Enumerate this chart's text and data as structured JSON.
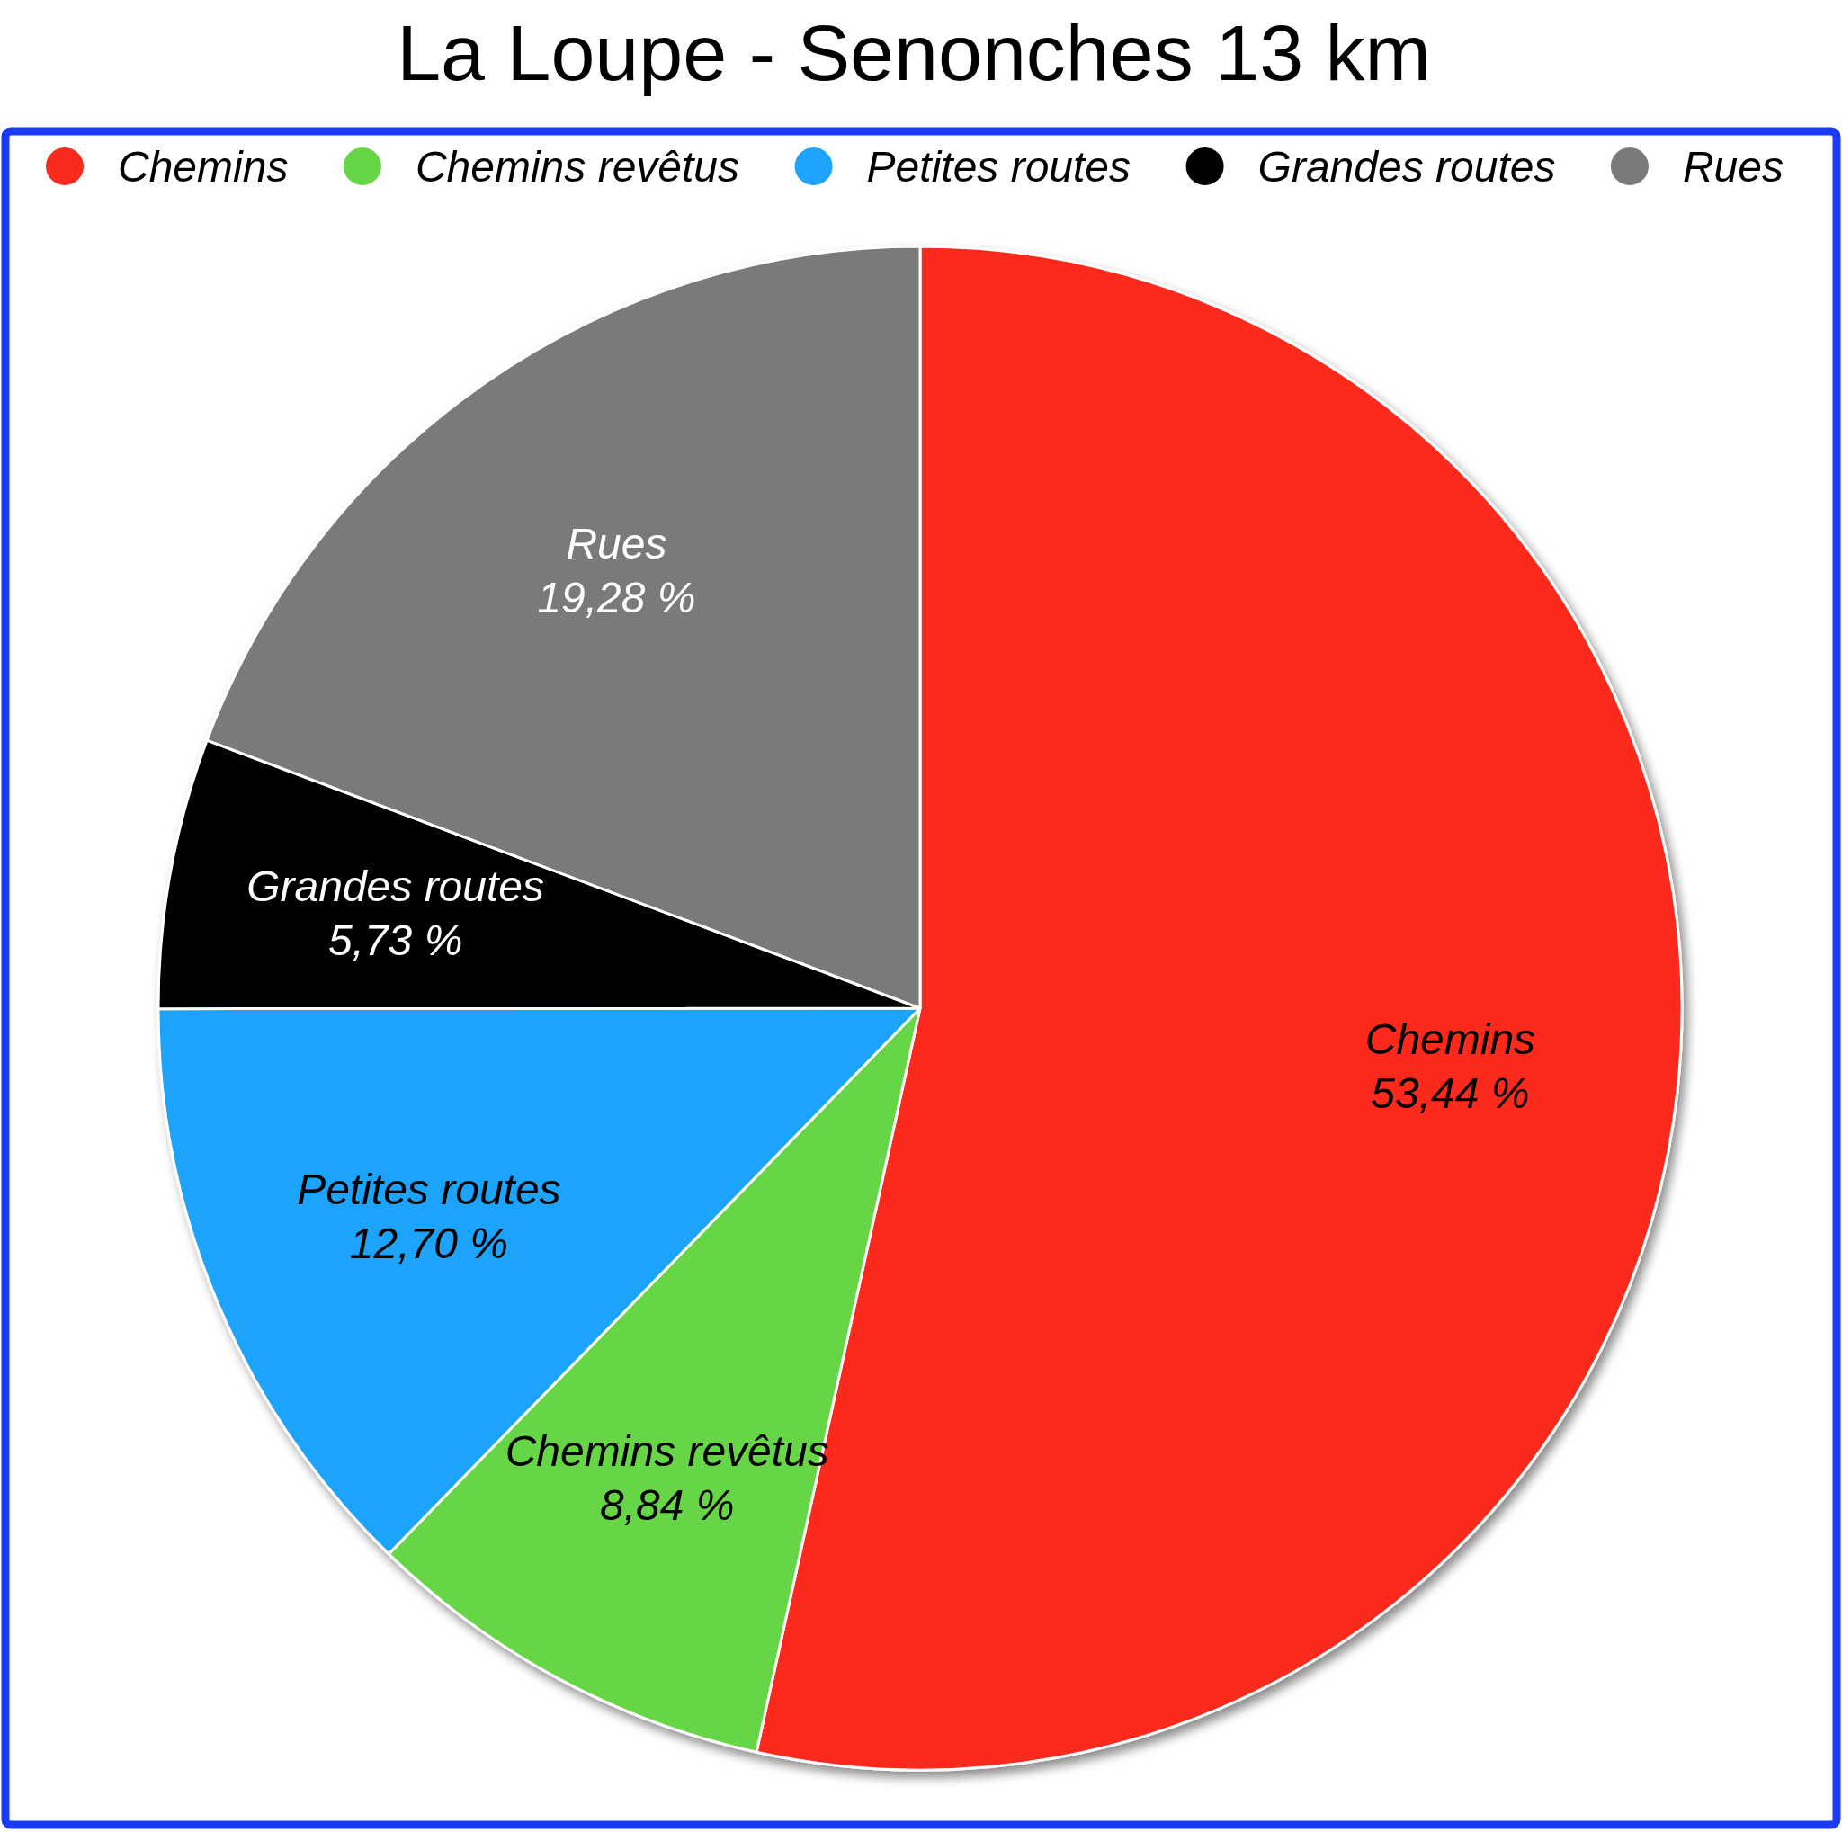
{
  "chart_data": {
    "type": "pie",
    "title": "La Loupe - Senonches 13 km",
    "categories": [
      "Chemins",
      "Chemins revêtus",
      "Petites routes",
      "Grandes routes",
      "Rues"
    ],
    "values": [
      53.44,
      8.84,
      12.7,
      5.73,
      19.28
    ],
    "colors": [
      "#fb2a1f",
      "#66d646",
      "#1ea3fc",
      "#000000",
      "#7a7a7a"
    ],
    "value_labels": [
      "53,44 %",
      "8,84 %",
      "12,70 %",
      "5,73 %",
      "19,28 %"
    ],
    "legend": "top"
  }
}
